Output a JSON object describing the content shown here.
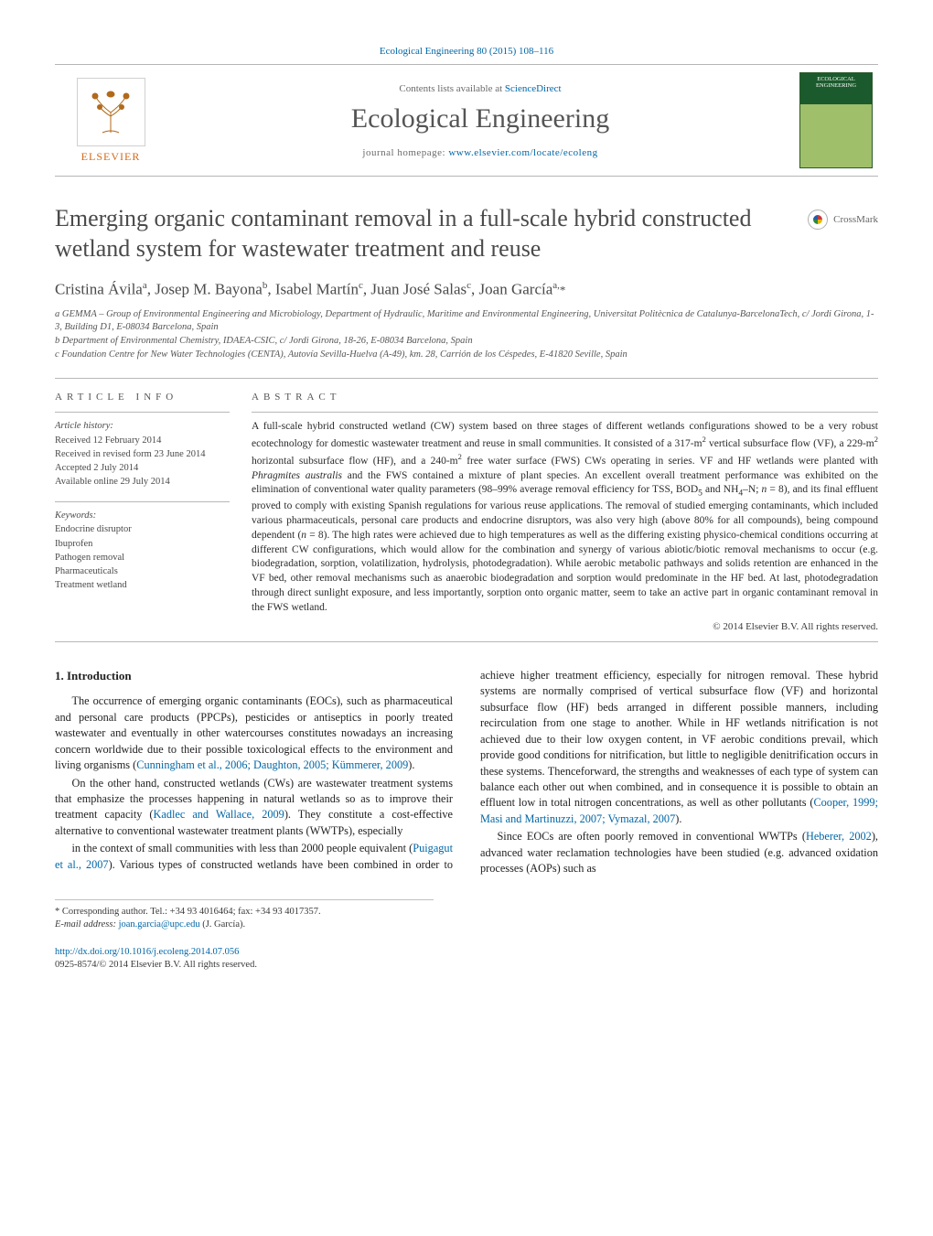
{
  "header": {
    "citation_prefix": "Ecological Engineering 80 (2015) 108–116",
    "contents_line_prefix": "Contents lists available at ",
    "contents_link": "ScienceDirect",
    "journal_name": "Ecological Engineering",
    "homepage_prefix": "journal homepage: ",
    "homepage_url": "www.elsevier.com/locate/ecoleng",
    "elsevier_word": "ELSEVIER",
    "cover_label": "ECOLOGICAL ENGINEERING"
  },
  "crossmark": {
    "label": "CrossMark"
  },
  "title": "Emerging organic contaminant removal in a full-scale hybrid constructed wetland system for wastewater treatment and reuse",
  "authors_html": "Cristina Ávila<sup>a</sup>, Josep M. Bayona<sup>b</sup>, Isabel Martín<sup>c</sup>, Juan José Salas<sup>c</sup>, Joan García<sup>a,</sup><span class='star'>*</span>",
  "affiliations": {
    "a": "a GEMMA – Group of Environmental Engineering and Microbiology, Department of Hydraulic, Maritime and Environmental Engineering, Universitat Politècnica de Catalunya-BarcelonaTech, c/ Jordi Girona, 1-3, Building D1, E-08034 Barcelona, Spain",
    "b": "b Department of Environmental Chemistry, IDAEA-CSIC, c/ Jordi Girona, 18-26, E-08034 Barcelona, Spain",
    "c": "c Foundation Centre for New Water Technologies (CENTA), Autovía Sevilla-Huelva (A-49), km. 28, Carrión de los Céspedes, E-41820 Seville, Spain"
  },
  "articleinfo": {
    "heading": "ARTICLE INFO",
    "history_heading": "Article history:",
    "received": "Received 12 February 2014",
    "revised": "Received in revised form 23 June 2014",
    "accepted": "Accepted 2 July 2014",
    "online": "Available online 29 July 2014",
    "keywords_heading": "Keywords:",
    "keywords": [
      "Endocrine disruptor",
      "Ibuprofen",
      "Pathogen removal",
      "Pharmaceuticals",
      "Treatment wetland"
    ]
  },
  "abstract": {
    "heading": "ABSTRACT",
    "text_html": "A full-scale hybrid constructed wetland (CW) system based on three stages of different wetlands configurations showed to be a very robust ecotechnology for domestic wastewater treatment and reuse in small communities. It consisted of a 317-m<sup>2</sup> vertical subsurface flow (VF), a 229-m<sup>2</sup> horizontal subsurface flow (HF), and a 240-m<sup>2</sup> free water surface (FWS) CWs operating in series. VF and HF wetlands were planted with <i>Phragmites australis</i> and the FWS contained a mixture of plant species. An excellent overall treatment performance was exhibited on the elimination of conventional water quality parameters (98–99% average removal efficiency for TSS, BOD<sub>5</sub> and NH<sub>4</sub>–N; <i>n</i> = 8), and its final effluent proved to comply with existing Spanish regulations for various reuse applications. The removal of studied emerging contaminants, which included various pharmaceuticals, personal care products and endocrine disruptors, was also very high (above 80% for all compounds), being compound dependent (<i>n</i> = 8). The high rates were achieved due to high temperatures as well as the differing existing physico-chemical conditions occurring at different CW configurations, which would allow for the combination and synergy of various abiotic/biotic removal mechanisms to occur (e.g. biodegradation, sorption, volatilization, hydrolysis, photodegradation). While aerobic metabolic pathways and solids retention are enhanced in the VF bed, other removal mechanisms such as anaerobic biodegradation and sorption would predominate in the HF bed. At last, photodegradation through direct sunlight exposure, and less importantly, sorption onto organic matter, seem to take an active part in organic contaminant removal in the FWS wetland.",
    "copyright": "© 2014 Elsevier B.V. All rights reserved."
  },
  "body": {
    "sec1_heading": "1. Introduction",
    "p1_html": "The occurrence of emerging organic contaminants (EOCs), such as pharmaceutical and personal care products (PPCPs), pesticides or antiseptics in poorly treated wastewater and eventually in other watercourses constitutes nowadays an increasing concern worldwide due to their possible toxicological effects to the environment and living organisms (<a href='#'>Cunningham et al., 2006; Daughton, 2005; Kümmerer, 2009</a>).",
    "p2_html": "On the other hand, constructed wetlands (CWs) are wastewater treatment systems that emphasize the processes happening in natural wetlands so as to improve their treatment capacity (<a href='#'>Kadlec and Wallace, 2009</a>). They constitute a cost-effective alternative to conventional wastewater treatment plants (WWTPs), especially",
    "p3_html": "in the context of small communities with less than 2000 people equivalent (<a href='#'>Puigagut et al., 2007</a>). Various types of constructed wetlands have been combined in order to achieve higher treatment efficiency, especially for nitrogen removal. These hybrid systems are normally comprised of vertical subsurface flow (VF) and horizontal subsurface flow (HF) beds arranged in different possible manners, including recirculation from one stage to another. While in HF wetlands nitrification is not achieved due to their low oxygen content, in VF aerobic conditions prevail, which provide good conditions for nitrification, but little to negligible denitrification occurs in these systems. Thenceforward, the strengths and weaknesses of each type of system can balance each other out when combined, and in consequence it is possible to obtain an effluent low in total nitrogen concentrations, as well as other pollutants (<a href='#'>Cooper, 1999; Masi and Martinuzzi, 2007; Vymazal, 2007</a>).",
    "p4_html": "Since EOCs are often poorly removed in conventional WWTPs (<a href='#'>Heberer, 2002</a>), advanced water reclamation technologies have been studied (e.g. advanced oxidation processes (AOPs) such as"
  },
  "footnotes": {
    "corr": "* Corresponding author. Tel.: +34 93 4016464; fax: +34 93 4017357.",
    "email_label": "E-mail address: ",
    "email": "joan.garcia@upc.edu",
    "email_suffix": " (J. García)."
  },
  "doi": {
    "url": "http://dx.doi.org/10.1016/j.ecoleng.2014.07.056",
    "issn_line": "0925-8574/© 2014 Elsevier B.V. All rights reserved."
  },
  "colors": {
    "link": "#0066a6",
    "rule": "#b8b8b8",
    "text": "#333333",
    "muted": "#6a6a6a"
  }
}
